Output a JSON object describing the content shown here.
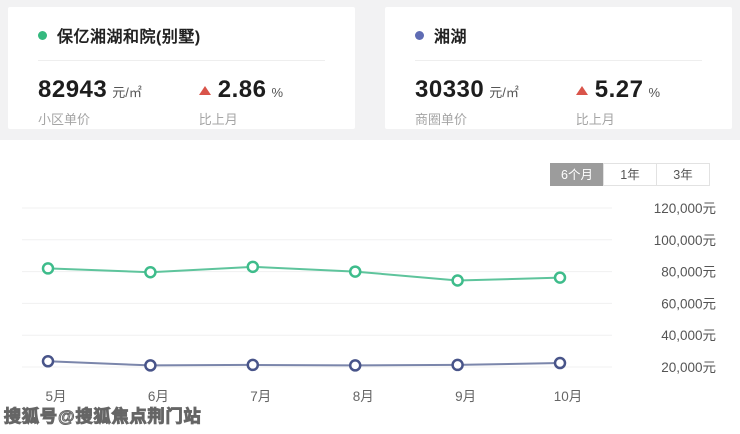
{
  "cards": [
    {
      "dot_color": "#35b97f",
      "name": "保亿湘湖和院(别墅)",
      "price": "82943",
      "price_unit": "元/㎡",
      "price_label": "小区单价",
      "change": "2.86",
      "change_unit": "%",
      "change_label": "比上月",
      "change_direction": "up",
      "change_color": "#d9544a"
    },
    {
      "dot_color": "#5f6cb4",
      "name": "湘湖",
      "price": "30330",
      "price_unit": "元/㎡",
      "price_label": "商圈单价",
      "change": "5.27",
      "change_unit": "%",
      "change_label": "比上月",
      "change_direction": "up",
      "change_color": "#d9544a"
    }
  ],
  "tabs": [
    {
      "label": "6个月",
      "selected": true
    },
    {
      "label": "1年",
      "selected": false
    },
    {
      "label": "3年",
      "selected": false
    }
  ],
  "watermark": "搜狐号@搜狐焦点荆门站",
  "chart_data": {
    "type": "line",
    "categories": [
      "5月",
      "6月",
      "7月",
      "8月",
      "9月",
      "10月"
    ],
    "series": [
      {
        "name": "保亿湘湖和院(别墅)",
        "color": "#5ec49c",
        "marker_color": "#3ebc8b",
        "values": [
          82000,
          79600,
          83000,
          80000,
          74400,
          76200
        ]
      },
      {
        "name": "湘湖",
        "color": "#7b86ab",
        "marker_color": "#485489",
        "values": [
          23600,
          21000,
          21300,
          21000,
          21300,
          22500
        ]
      }
    ],
    "yticks": [
      {
        "value": 20000,
        "label": "20,000元"
      },
      {
        "value": 40000,
        "label": "40,000元"
      },
      {
        "value": 60000,
        "label": "60,000元"
      },
      {
        "value": 80000,
        "label": "80,000元"
      },
      {
        "value": 100000,
        "label": "100,000元"
      },
      {
        "value": 120000,
        "label": "120,000元"
      }
    ],
    "ylim": [
      20000,
      120000
    ],
    "xlabel": "",
    "ylabel": "",
    "title": "",
    "grid": true,
    "legend_position": "cards-top",
    "y_axis_side": "right"
  }
}
